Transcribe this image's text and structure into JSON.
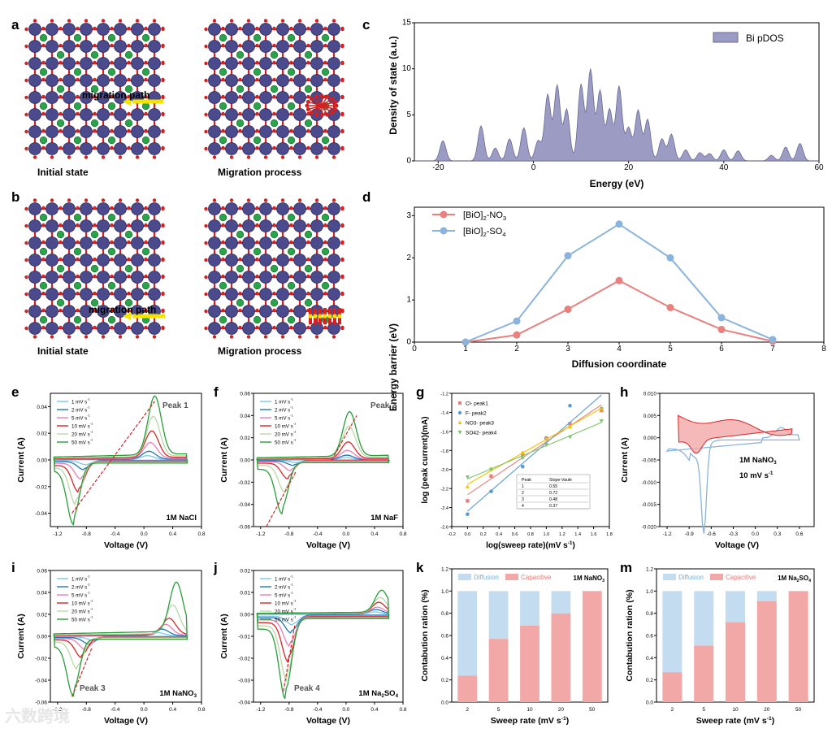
{
  "labels": {
    "a": "a",
    "b": "b",
    "c": "c",
    "d": "d",
    "e": "e",
    "f": "f",
    "g": "g",
    "h": "h",
    "i": "i",
    "j": "j",
    "k": "k",
    "m": "m"
  },
  "panel_a": {
    "left_caption": "Initial state",
    "right_caption": "Migration process",
    "path_label": "migration path"
  },
  "panel_b": {
    "left_caption": "Initial state",
    "right_caption": "Migration process",
    "path_label": "migration path"
  },
  "colors": {
    "bi": "#4a4a8c",
    "o": "#d42020",
    "ion": "#2aa34a",
    "arrow": "#f5e400",
    "pdos": "#9b9bc4",
    "no3": "#e8807e",
    "so4": "#8ab4dc",
    "diffusion": "#c4dcf0",
    "capacitive": "#f3a8a8",
    "cv1": "#7ec8e8",
    "cv2": "#1f77b4",
    "cv5": "#e77fb4",
    "cv10": "#d62728",
    "cv20": "#b8d8a8",
    "cv50": "#2a9d3a"
  },
  "chart_data": [
    {
      "id": "c",
      "type": "area",
      "xlabel": "Energy (eV)",
      "ylabel": "Density of state (a.u.)",
      "legend": "Bi pDOS",
      "xlim": [
        -25,
        60
      ],
      "ylim": [
        0,
        15
      ],
      "xticks": [
        "-20",
        "0",
        "20",
        "40",
        "60"
      ],
      "yticks": [
        "0",
        "5",
        "10",
        "15"
      ],
      "peaks": [
        [
          -19,
          2.2
        ],
        [
          -11,
          3.8
        ],
        [
          -8,
          1.4
        ],
        [
          -5,
          2.4
        ],
        [
          -2,
          3.6
        ],
        [
          1,
          2.2
        ],
        [
          3,
          7.2
        ],
        [
          5,
          8.2
        ],
        [
          7,
          5.6
        ],
        [
          10,
          8.3
        ],
        [
          12,
          9.9
        ],
        [
          14,
          7.6
        ],
        [
          16,
          5.6
        ],
        [
          18,
          8.1
        ],
        [
          20,
          3.6
        ],
        [
          22,
          5.5
        ],
        [
          24,
          4.5
        ],
        [
          27,
          2.4
        ],
        [
          29,
          2.9
        ],
        [
          32,
          1.2
        ],
        [
          35,
          0.9
        ],
        [
          37,
          0.8
        ],
        [
          40,
          1.2
        ],
        [
          43,
          1.1
        ],
        [
          50,
          0.6
        ],
        [
          53,
          1.5
        ],
        [
          56,
          1.9
        ]
      ]
    },
    {
      "id": "d",
      "type": "line",
      "xlabel": "Diffusion coordinate",
      "ylabel": "Energy barrier (eV)",
      "xlim": [
        0,
        8
      ],
      "ylim": [
        0,
        3.2
      ],
      "xticks": [
        "0",
        "1",
        "2",
        "3",
        "4",
        "5",
        "6",
        "7",
        "8"
      ],
      "yticks": [
        "0",
        "1",
        "2",
        "3"
      ],
      "x": [
        1,
        2,
        3,
        4,
        5,
        6,
        7
      ],
      "series": [
        {
          "name": "[BiO]2-NO3",
          "base": "[BiO]",
          "sub1": "2",
          "mid": "-NO",
          "sub2": "3",
          "values": [
            0,
            0.17,
            0.78,
            1.46,
            0.82,
            0.3,
            0.02
          ]
        },
        {
          "name": "[BiO]2-SO4",
          "base": "[BiO]",
          "sub1": "2",
          "mid": "-SO",
          "sub2": "4",
          "values": [
            0,
            0.5,
            2.05,
            2.8,
            2.0,
            0.58,
            0.06
          ]
        }
      ]
    },
    {
      "id": "e",
      "type": "line",
      "xlabel": "Voltage (V)",
      "ylabel": "Current (A)",
      "annotation": "Peak 1",
      "electrolyte": "1M NaCl",
      "xlim": [
        -1.3,
        0.8
      ],
      "ylim": [
        -0.05,
        0.05
      ],
      "xticks": [
        "-1.2",
        "-0.8",
        "-0.4",
        "0.0",
        "0.4",
        "0.8"
      ],
      "yticks": [
        "-0.04",
        "-0.02",
        "0.00",
        "0.02",
        "0.04"
      ],
      "legend": [
        "1 mV s-1",
        "2 mV s-1",
        "5 mV s-1",
        "10 mV s-1",
        "20 mV s-1",
        "50 mV s-1"
      ],
      "peak_ox": [
        0.003,
        0.006,
        0.012,
        0.02,
        0.03,
        0.044
      ],
      "peak_red": [
        -0.003,
        -0.006,
        -0.012,
        -0.02,
        -0.028,
        -0.04
      ]
    },
    {
      "id": "f",
      "type": "line",
      "xlabel": "Voltage (V)",
      "ylabel": "Current (A)",
      "annotation": "Peak 2",
      "electrolyte": "1M NaF",
      "xlim": [
        -1.3,
        0.8
      ],
      "ylim": [
        -0.06,
        0.06
      ],
      "xticks": [
        "-1.2",
        "-0.8",
        "-0.4",
        "0.0",
        "0.4",
        "0.8"
      ],
      "yticks": [
        "-0.06",
        "-0.04",
        "-0.02",
        "0.00",
        "0.02",
        "0.04",
        "0.06"
      ],
      "legend": [
        "1 mV s-1",
        "2 mV s-1",
        "5 mV s-1",
        "10 mV s-1",
        "20 mV s-1",
        "50 mV s-1"
      ],
      "peak_ox": [
        0.002,
        0.004,
        0.008,
        0.015,
        0.028,
        0.04
      ],
      "peak_red": [
        -0.002,
        -0.004,
        -0.008,
        -0.014,
        -0.024,
        -0.04
      ]
    },
    {
      "id": "g",
      "type": "scatter",
      "xlabel": "log(sweep rate)(mV s-1)",
      "ylabel": "log (peak current)(mA)",
      "xlim": [
        -0.2,
        1.8
      ],
      "ylim": [
        -2.6,
        -1.2
      ],
      "xticks": [
        "-0.2",
        "0.0",
        "0.2",
        "0.4",
        "0.6",
        "0.8",
        "1.0",
        "1.2",
        "1.4",
        "1.6",
        "1.8"
      ],
      "yticks": [
        "-2.6",
        "-2.4",
        "-2.2",
        "-2.0",
        "-1.8",
        "-1.6",
        "-1.4",
        "-1.2"
      ],
      "x": [
        0,
        0.3,
        0.7,
        1.0,
        1.3,
        1.7
      ],
      "series": [
        {
          "name": "Cl- peak1",
          "values": [
            -2.33,
            -2.07,
            -1.84,
            -1.67,
            -1.52,
            -1.38
          ]
        },
        {
          "name": "F- peak2",
          "values": [
            -2.47,
            -2.23,
            -1.97,
            -1.68,
            -1.33,
            -1.36
          ]
        },
        {
          "name": "NO3- peak3",
          "values": [
            -2.18,
            -1.99,
            -1.82,
            -1.68,
            -1.55,
            -1.36
          ]
        },
        {
          "name": "SO42- peak4",
          "values": [
            -2.08,
            -2.0,
            -1.88,
            -1.74,
            -1.66,
            -1.49
          ]
        }
      ],
      "table": {
        "headers": [
          "Peak",
          "Slope-Vaule"
        ],
        "rows": [
          [
            "1",
            "0.55"
          ],
          [
            "2",
            "0.72"
          ],
          [
            "3",
            "0.48"
          ],
          [
            "4",
            "0.37"
          ]
        ]
      }
    },
    {
      "id": "h",
      "type": "line",
      "xlabel": "Voltage (V)",
      "ylabel": "Current (A)",
      "electrolyte": "1M NaNO3",
      "rate": "10 mV s-1",
      "xlim": [
        -1.3,
        0.8
      ],
      "ylim": [
        -0.02,
        0.01
      ],
      "xticks": [
        "-1.2",
        "-0.9",
        "-0.6",
        "-0.3",
        "0.0",
        "0.3",
        "0.6"
      ],
      "yticks": [
        "-0.020",
        "-0.015",
        "-0.010",
        "-0.005",
        "0.000",
        "0.005",
        "0.010"
      ]
    },
    {
      "id": "i",
      "type": "line",
      "xlabel": "Voltage (V)",
      "ylabel": "Current (A)",
      "annotation": "Peak 3",
      "electrolyte": "1M NaNO3",
      "xlim": [
        -1.3,
        0.8
      ],
      "ylim": [
        -0.06,
        0.06
      ],
      "xticks": [
        "-1.2",
        "-0.8",
        "-0.4",
        "0.0",
        "0.4",
        "0.8"
      ],
      "yticks": [
        "-0.06",
        "-0.04",
        "-0.02",
        "0.00",
        "0.02",
        "0.04",
        "0.06"
      ],
      "legend": [
        "1 mV s-1",
        "2 mV s-1",
        "5 mV s-1",
        "10 mV s-1",
        "20 mV s-1",
        "50 mV s-1"
      ],
      "peak_ox": [
        0.003,
        0.006,
        0.01,
        0.015,
        0.026,
        0.045
      ],
      "peak_red": [
        -0.003,
        -0.006,
        -0.01,
        -0.016,
        -0.025,
        -0.045
      ]
    },
    {
      "id": "j",
      "type": "line",
      "xlabel": "Voltage (V)",
      "ylabel": "Current (A)",
      "annotation": "Peak 4",
      "electrolyte": "1M Na2SO4",
      "xlim": [
        -1.3,
        0.8
      ],
      "ylim": [
        -0.04,
        0.02
      ],
      "xticks": [
        "-1.2",
        "-0.8",
        "-0.4",
        "0.0",
        "0.4",
        "0.8"
      ],
      "yticks": [
        "-0.04",
        "-0.03",
        "-0.02",
        "-0.01",
        "0.00",
        "0.01",
        "0.02"
      ],
      "legend": [
        "1 mV s-1",
        "2 mV s-1",
        "5 mV s-1",
        "10 mV s-1",
        "20 mV s-1",
        "50 mV s-1"
      ],
      "peak_ox": [
        0.001,
        0.002,
        0.003,
        0.005,
        0.007,
        0.01
      ],
      "peak_red": [
        -0.004,
        -0.007,
        -0.012,
        -0.018,
        -0.025,
        -0.032
      ]
    },
    {
      "id": "k",
      "type": "bar",
      "xlabel": "Sweep rate (mV s-1)",
      "ylabel": "Contabution ration (%)",
      "title": "1M NaNO3",
      "ylim": [
        0,
        1.2
      ],
      "categories": [
        "2",
        "5",
        "10",
        "20",
        "50"
      ],
      "yticks": [
        "0.0",
        "0.2",
        "0.4",
        "0.6",
        "0.8",
        "1.0",
        "1.2"
      ],
      "series": [
        {
          "name": "Diffusion",
          "values": [
            0.76,
            0.43,
            0.31,
            0.2,
            0.0
          ]
        },
        {
          "name": "Capacitive",
          "values": [
            0.24,
            0.57,
            0.69,
            0.8,
            1.0
          ]
        }
      ]
    },
    {
      "id": "m",
      "type": "bar",
      "xlabel": "Sweep rate (mV s-1)",
      "ylabel": "Contabution ration (%)",
      "title": "1M Na2SO4",
      "ylim": [
        0,
        1.2
      ],
      "categories": [
        "2",
        "5",
        "10",
        "20",
        "50"
      ],
      "yticks": [
        "0.0",
        "0.2",
        "0.4",
        "0.6",
        "0.8",
        "1.0",
        "1.2"
      ],
      "series": [
        {
          "name": "Diffusion",
          "values": [
            0.73,
            0.49,
            0.28,
            0.09,
            0.0
          ]
        },
        {
          "name": "Capacitive",
          "values": [
            0.27,
            0.51,
            0.72,
            0.91,
            1.0
          ]
        }
      ]
    }
  ],
  "watermark": "六数跨境"
}
